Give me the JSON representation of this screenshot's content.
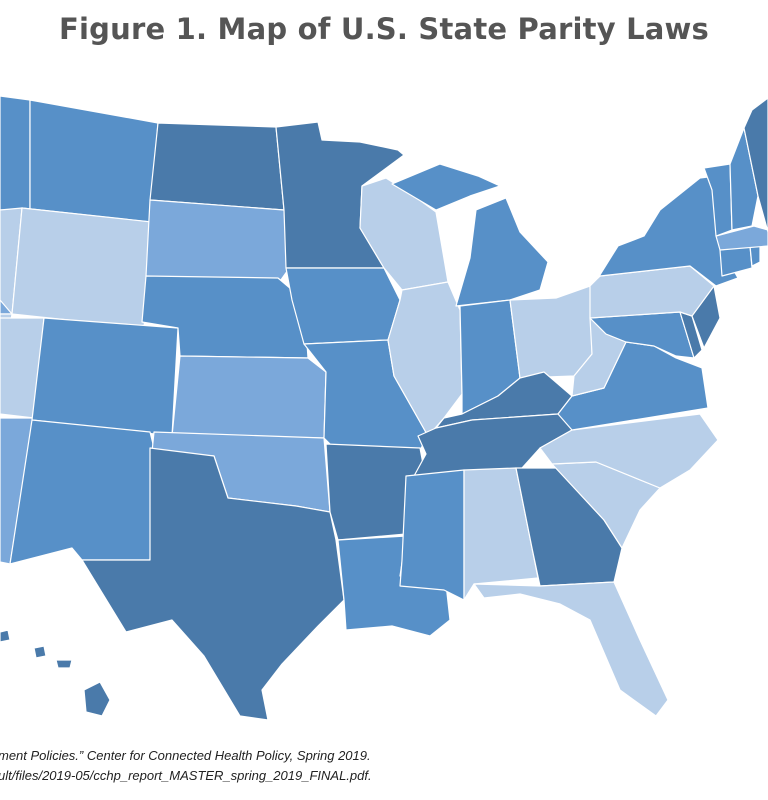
{
  "title": "Figure 1. Map of U.S. State Parity Laws",
  "colors": {
    "dark": "#4a7aaa",
    "medium": "#5790c8",
    "light_medium": "#7ba8da",
    "light": "#b8cfe9",
    "background": "#ffffff",
    "border": "#ffffff"
  },
  "states": [
    {
      "id": "WA",
      "category": "medium"
    },
    {
      "id": "OR",
      "category": "light_medium"
    },
    {
      "id": "CA",
      "category": "light_medium"
    },
    {
      "id": "NV",
      "category": "light"
    },
    {
      "id": "ID",
      "category": "light"
    },
    {
      "id": "MT",
      "category": "medium"
    },
    {
      "id": "WY",
      "category": "light"
    },
    {
      "id": "UT",
      "category": "light"
    },
    {
      "id": "AZ",
      "category": "light_medium"
    },
    {
      "id": "CO",
      "category": "medium"
    },
    {
      "id": "NM",
      "category": "medium"
    },
    {
      "id": "ND",
      "category": "dark"
    },
    {
      "id": "SD",
      "category": "light_medium"
    },
    {
      "id": "NE",
      "category": "medium"
    },
    {
      "id": "KS",
      "category": "light_medium"
    },
    {
      "id": "OK",
      "category": "light_medium"
    },
    {
      "id": "TX",
      "category": "dark"
    },
    {
      "id": "MN",
      "category": "dark"
    },
    {
      "id": "IA",
      "category": "medium"
    },
    {
      "id": "MO",
      "category": "medium"
    },
    {
      "id": "AR",
      "category": "dark"
    },
    {
      "id": "LA",
      "category": "medium"
    },
    {
      "id": "WI",
      "category": "light"
    },
    {
      "id": "IL",
      "category": "light"
    },
    {
      "id": "MI",
      "category": "medium"
    },
    {
      "id": "IN",
      "category": "medium"
    },
    {
      "id": "OH",
      "category": "light"
    },
    {
      "id": "KY",
      "category": "dark"
    },
    {
      "id": "TN",
      "category": "dark"
    },
    {
      "id": "MS",
      "category": "medium"
    },
    {
      "id": "AL",
      "category": "light"
    },
    {
      "id": "GA",
      "category": "dark"
    },
    {
      "id": "FL",
      "category": "light"
    },
    {
      "id": "SC",
      "category": "light"
    },
    {
      "id": "NC",
      "category": "light"
    },
    {
      "id": "VA",
      "category": "medium"
    },
    {
      "id": "WV",
      "category": "light"
    },
    {
      "id": "MD",
      "category": "medium"
    },
    {
      "id": "DE",
      "category": "dark"
    },
    {
      "id": "NJ",
      "category": "dark"
    },
    {
      "id": "PA",
      "category": "light"
    },
    {
      "id": "NY",
      "category": "medium"
    },
    {
      "id": "CT",
      "category": "medium"
    },
    {
      "id": "RI",
      "category": "medium"
    },
    {
      "id": "MA",
      "category": "light_medium"
    },
    {
      "id": "VT",
      "category": "medium"
    },
    {
      "id": "NH",
      "category": "medium"
    },
    {
      "id": "ME",
      "category": "dark"
    },
    {
      "id": "HI",
      "category": "dark"
    },
    {
      "id": "AK",
      "category": "dark"
    }
  ],
  "source_line_1": "ment Policies.” Center for Connected Health Policy, Spring 2019.",
  "source_line_2": "ult/files/2019-05/cchp_report_MASTER_spring_2019_FINAL.pdf."
}
